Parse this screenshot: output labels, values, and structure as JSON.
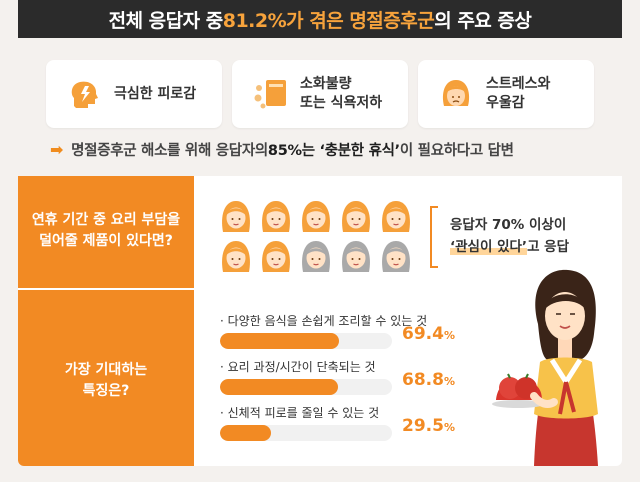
{
  "header": {
    "title_pre": "전체 응답자 중 ",
    "title_pct": "81.2%가 겪은 명절증후군",
    "title_post": "의 주요 증상"
  },
  "symptoms": [
    {
      "icon": "head-brain-icon",
      "label": "극심한 피로감"
    },
    {
      "icon": "meal-icon",
      "label": "소화불량\n또는 식욕저하"
    },
    {
      "icon": "woman-face-icon",
      "label": "스트레스와\n우울감"
    }
  ],
  "answer": {
    "pre": "명절증후군 해소를 위해 응답자의 ",
    "strong": "85%는 ‘충분한 휴식’",
    "post": "이 필요하다고 답변"
  },
  "panel": {
    "question1": "연휴 기간 중 요리 부담을\n덜어줄 제품이 있다면?",
    "question2": "가장 기대하는\n특징은?",
    "response_line1_strong": "응답자 70%",
    "response_line1_post": " 이상이",
    "response_line2_strong": "‘관심이 있다’",
    "response_line2_post": "고 응답",
    "interested_fraction": 0.7,
    "features": [
      {
        "label": "· 다양한 음식을 손쉽게 조리할 수 있는 것",
        "value": "69.4",
        "unit": "%",
        "fraction": 0.694
      },
      {
        "label": "· 요리 과정/시간이 단축되는 것",
        "value": "68.8",
        "unit": "%",
        "fraction": 0.688
      },
      {
        "label": "· 신체적 피로를 줄일 수 있는 것",
        "value": "29.5",
        "unit": "%",
        "fraction": 0.295
      }
    ]
  },
  "colors": {
    "accent": "#f28a23",
    "dark": "#2b2b2b",
    "face_orange": "#f5a03a",
    "face_gray": "#a9a9a9"
  }
}
